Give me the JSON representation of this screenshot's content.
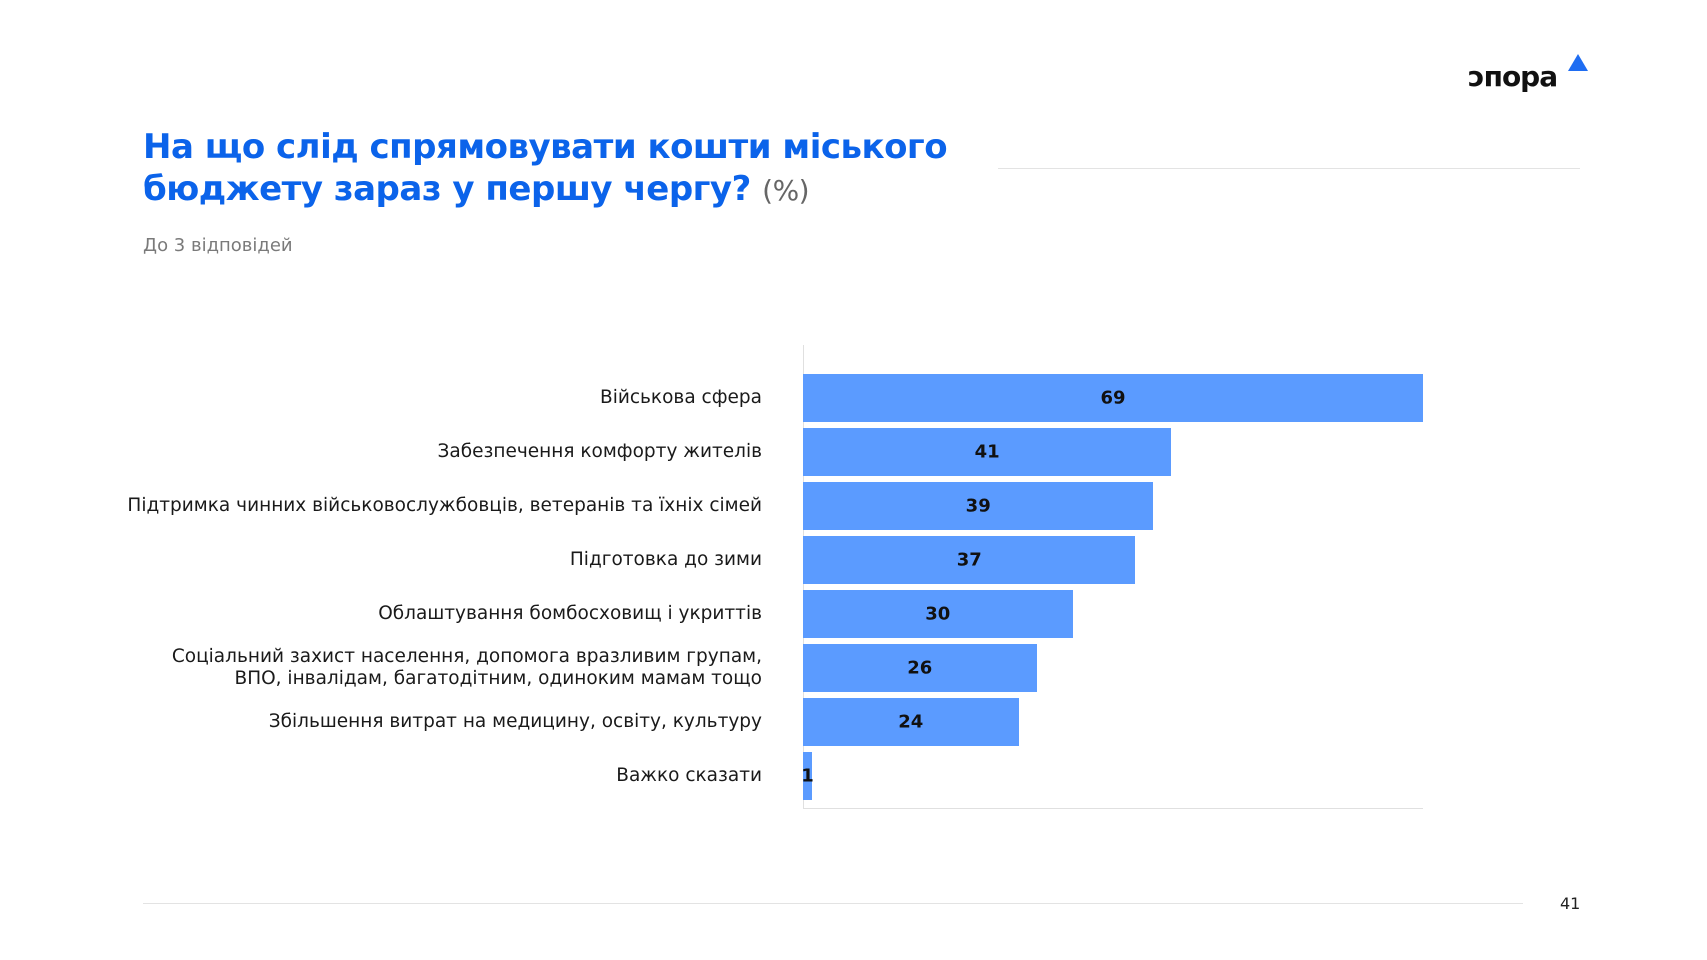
{
  "brand": {
    "logo_text": "ɔпора",
    "accent_color": "#1f6df2"
  },
  "header": {
    "title": "На що слід спрямовувати кошти міського бюджету зараз у першу чергу?",
    "unit": "(%)",
    "subtitle": "До 3 відповідей"
  },
  "chart_data": {
    "type": "bar",
    "orientation": "horizontal",
    "categories": [
      "Військова сфера",
      "Забезпечення комфорту жителів",
      "Підтримка чинних військовослужбовців, ветеранів та їхніх сімей",
      "Підготовка до зими",
      "Облаштування бомбосховищ і укриттів",
      "Соціальний захист населення, допомога вразливим групам, ВПО, інвалідам, багатодітним, одиноким мамам тощо",
      "Збільшення витрат на медицину, освіту, культуру",
      "Важко сказати"
    ],
    "values": [
      69,
      41,
      39,
      37,
      30,
      26,
      24,
      1
    ],
    "xlim": [
      0,
      69
    ],
    "bar_color": "#5b9bff",
    "grid": false
  },
  "footer": {
    "page_number": "41"
  }
}
